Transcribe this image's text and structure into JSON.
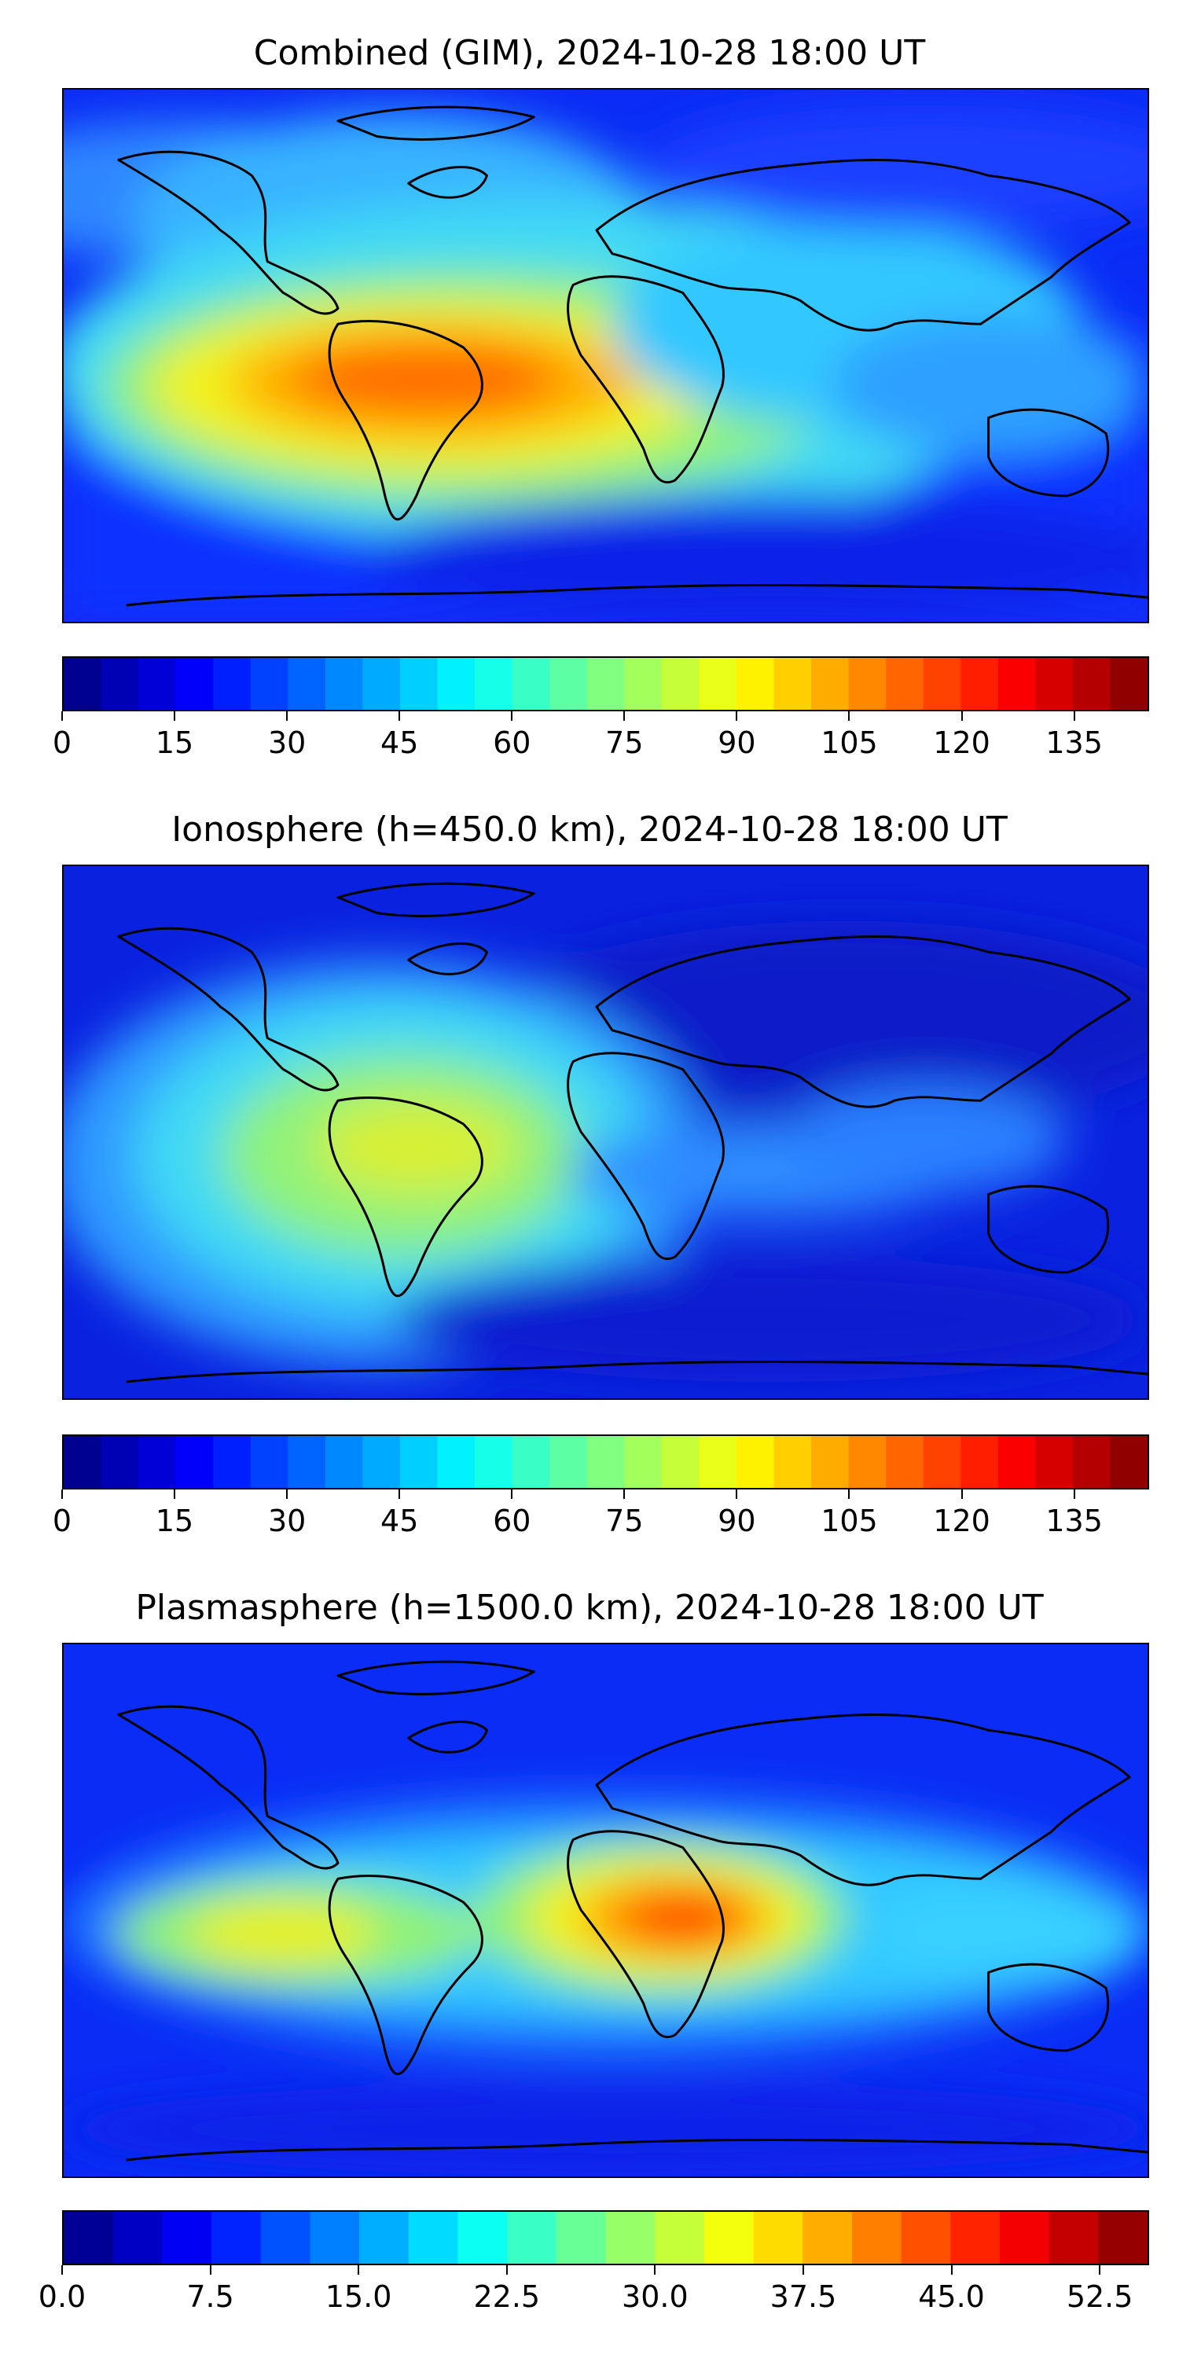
{
  "panels": [
    {
      "title": "Combined (GIM), 2024-10-28 18:00 UT",
      "colorbar": {
        "vmin": 0,
        "vmax": 145,
        "levels": 29,
        "ticks": [
          "0",
          "15",
          "30",
          "45",
          "60",
          "75",
          "90",
          "105",
          "120",
          "135"
        ],
        "tick_values": [
          0,
          15,
          30,
          45,
          60,
          75,
          90,
          105,
          120,
          135
        ]
      }
    },
    {
      "title": "Ionosphere  (h=450.0 km), 2024-10-28 18:00 UT",
      "colorbar": {
        "vmin": 0,
        "vmax": 145,
        "levels": 29,
        "ticks": [
          "0",
          "15",
          "30",
          "45",
          "60",
          "75",
          "90",
          "105",
          "120",
          "135"
        ],
        "tick_values": [
          0,
          15,
          30,
          45,
          60,
          75,
          90,
          105,
          120,
          135
        ]
      }
    },
    {
      "title": "Plasmasphere (h=1500.0 km), 2024-10-28 18:00 UT",
      "colorbar": {
        "vmin": 0,
        "vmax": 55,
        "levels": 22,
        "ticks": [
          "0.0",
          "7.5",
          "15.0",
          "22.5",
          "30.0",
          "37.5",
          "45.0",
          "52.5"
        ],
        "tick_values": [
          0,
          7.5,
          15,
          22.5,
          30,
          37.5,
          45,
          52.5
        ]
      }
    }
  ],
  "colormap": "jet",
  "projection": "plate-carree",
  "coastlines": true
}
